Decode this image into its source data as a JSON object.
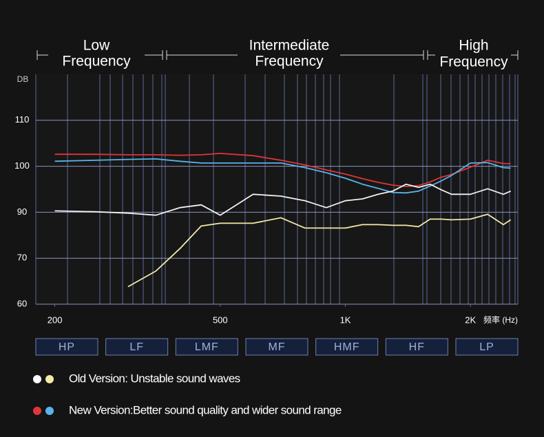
{
  "chart_data": {
    "type": "line",
    "header": [
      {
        "title": "Low",
        "subtitle": "Frequency"
      },
      {
        "title": "Intermediate",
        "subtitle": "Frequency"
      },
      {
        "title": "High",
        "subtitle": "Frequency"
      }
    ],
    "y_label": "DB",
    "x_label": "频率 (Hz)",
    "x_log": true,
    "x": [
      200,
      250,
      300,
      350,
      400,
      450,
      500,
      600,
      700,
      800,
      900,
      1000,
      1100,
      1200,
      1300,
      1400,
      1500,
      1600,
      1700,
      1800,
      2000,
      2200,
      2400,
      2500
    ],
    "series": [
      {
        "color": "#e0353a",
        "values": [
          102.6,
          102.6,
          102.5,
          102.5,
          102.4,
          102.5,
          102.8,
          102.3,
          101.3,
          100.3,
          99.2,
          98.3,
          97.3,
          96.5,
          95.9,
          95.6,
          95.8,
          96.6,
          97.6,
          98.2,
          99.8,
          101.3,
          100.6,
          100.6
        ]
      },
      {
        "color": "#5ab4ea",
        "values": [
          101.1,
          101.3,
          101.5,
          101.6,
          101.1,
          100.7,
          100.7,
          100.7,
          100.7,
          99.7,
          98.6,
          97.4,
          96.1,
          95.2,
          94.3,
          94.2,
          94.6,
          95.7,
          96.8,
          98.0,
          100.7,
          100.8,
          99.7,
          99.6
        ]
      },
      {
        "color": "#f2f2f2",
        "values": [
          90.3,
          90.1,
          89.6,
          88.7,
          91.0,
          91.6,
          88.7,
          93.9,
          93.5,
          92.5,
          91.0,
          92.5,
          92.9,
          93.9,
          94.6,
          96.1,
          95.4,
          96.1,
          94.9,
          93.9,
          93.9,
          95.1,
          93.9,
          94.6
        ]
      },
      {
        "color": "#f3eaa9",
        "values": [
          null,
          null,
          63.8,
          67.2,
          74.2,
          84.0,
          85.2,
          85.2,
          87.6,
          83.1,
          83.1,
          83.1,
          84.6,
          84.6,
          84.3,
          84.3,
          83.7,
          87.0,
          87.0,
          86.7,
          87.0,
          89.1,
          84.6,
          86.7
        ]
      }
    ],
    "xlim": [
      180,
      2600
    ],
    "xticks": [
      200,
      500,
      {
        "value": 1000,
        "label": "1K"
      },
      {
        "value": 2000,
        "label": "2K"
      }
    ],
    "ylim": [
      60,
      120
    ],
    "yticks": [
      60,
      70,
      90,
      100,
      110
    ],
    "grid": true,
    "bands": [
      "HP",
      "LF",
      "LMF",
      "MF",
      "HMF",
      "HF",
      "LP"
    ],
    "legend": [
      {
        "label": "Old Version: Unstable sound waves",
        "colors": [
          "#ffffff",
          "#f3eaa9"
        ]
      },
      {
        "label": "New Version:Better sound quality and wider sound range",
        "colors": [
          "#e0353a",
          "#5ab4ea"
        ]
      }
    ]
  }
}
